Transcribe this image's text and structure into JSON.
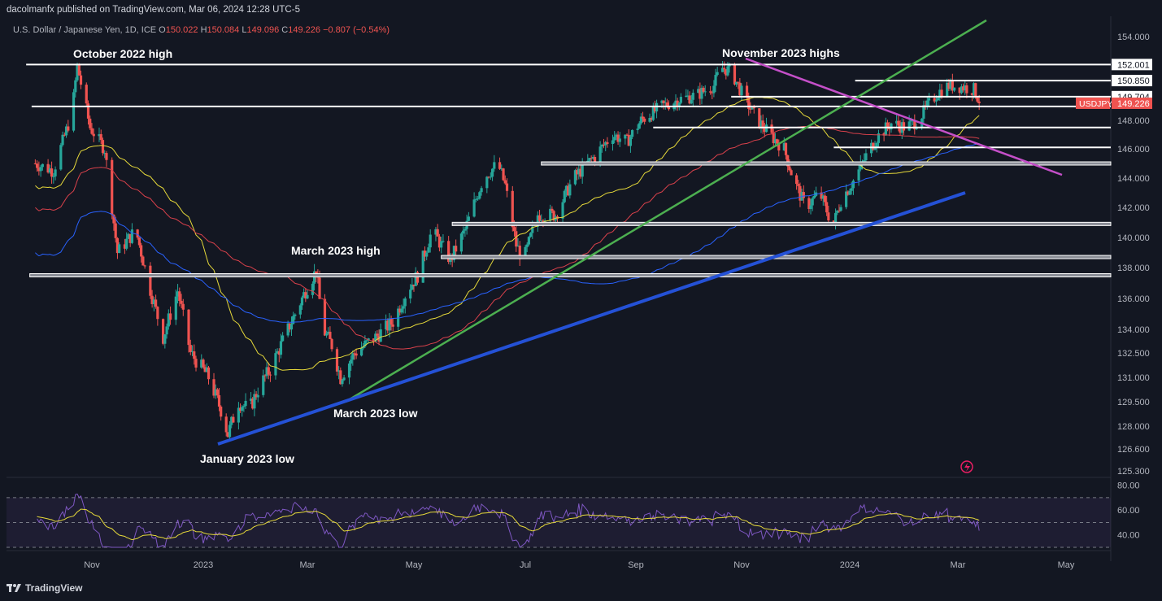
{
  "header": {
    "published": "dacolmanfx published on TradingView.com, Mar 06, 2024 12:28 UTC-5"
  },
  "symbol": {
    "name": "U.S. Dollar / Japanese Yen, 1D, ICE",
    "o_label": "O",
    "o": "150.022",
    "h_label": "H",
    "h": "150.084",
    "l_label": "L",
    "l": "149.096",
    "c_label": "C",
    "c": "149.226",
    "change": "−0.807 (−0.54%)"
  },
  "footer": {
    "brand": "TradingView"
  },
  "colors": {
    "background": "#131722",
    "up": "#26a69a",
    "down": "#ef5350",
    "ma_fast": "#e6d93a",
    "ma_mid": "#d9414b",
    "ma_slow": "#2962ff",
    "trend_green": "#4caf50",
    "trend_blue": "#2451d6",
    "trend_purple": "#c44fc8",
    "rsi": "#7e57c2"
  },
  "chart_data": {
    "type": "candlestick",
    "symbol": "USDJPY",
    "last_price": "149.226",
    "x_ticks": [
      "Nov",
      "2023",
      "Mar",
      "May",
      "Jul",
      "Sep",
      "Nov",
      "2024",
      "Mar",
      "May"
    ],
    "y_ticks": [
      "154.000",
      "148.000",
      "146.000",
      "144.000",
      "142.000",
      "140.000",
      "138.000",
      "136.000",
      "134.000",
      "132.500",
      "131.000",
      "129.500",
      "128.000",
      "126.600",
      "125.300"
    ],
    "level_labels": [
      "152.001",
      "150.850",
      "149.704"
    ],
    "annotations": [
      "October 2022 high",
      "November 2023 highs",
      "March 2023 high",
      "March 2023 low",
      "January 2023 low"
    ],
    "support_resistance": [
      152.0,
      150.85,
      149.7,
      149.0,
      147.5,
      146.1,
      145.0,
      140.9,
      138.7,
      137.5
    ],
    "rsi": {
      "ticks": [
        "80.00",
        "60.00",
        "40.00"
      ],
      "ylim": [
        30,
        85
      ],
      "overbought": 70,
      "midline": 50
    }
  }
}
